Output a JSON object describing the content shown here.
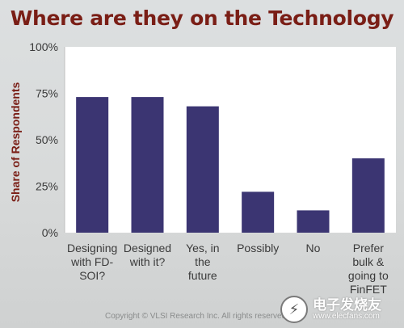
{
  "chart_data": {
    "type": "bar",
    "title": "Where are they on the Technology",
    "ylabel": "Share of Respondents",
    "xlabel": "",
    "ylim": [
      0,
      100
    ],
    "yticks": [
      "0%",
      "25%",
      "50%",
      "75%",
      "100%"
    ],
    "ytick_values": [
      0,
      25,
      50,
      75,
      100
    ],
    "categories": [
      [
        "Designing",
        "with FD-",
        "SOI?"
      ],
      [
        "Designed",
        "with it?"
      ],
      [
        "Yes, in",
        "the",
        "future"
      ],
      [
        "Possibly"
      ],
      [
        "No"
      ],
      [
        "Prefer",
        "bulk &",
        "going to",
        "FinFET"
      ]
    ],
    "values": [
      73,
      73,
      68,
      22,
      12,
      40
    ],
    "bar_color": "#3b3572",
    "plot_background": "#ffffff",
    "grid": false,
    "legend": "none"
  },
  "footer": {
    "copyright": "Copyright © VLSI Research Inc.  All rights reserved."
  },
  "watermark": {
    "brand": "电子发烧友",
    "url": "www.elecfans.com"
  }
}
